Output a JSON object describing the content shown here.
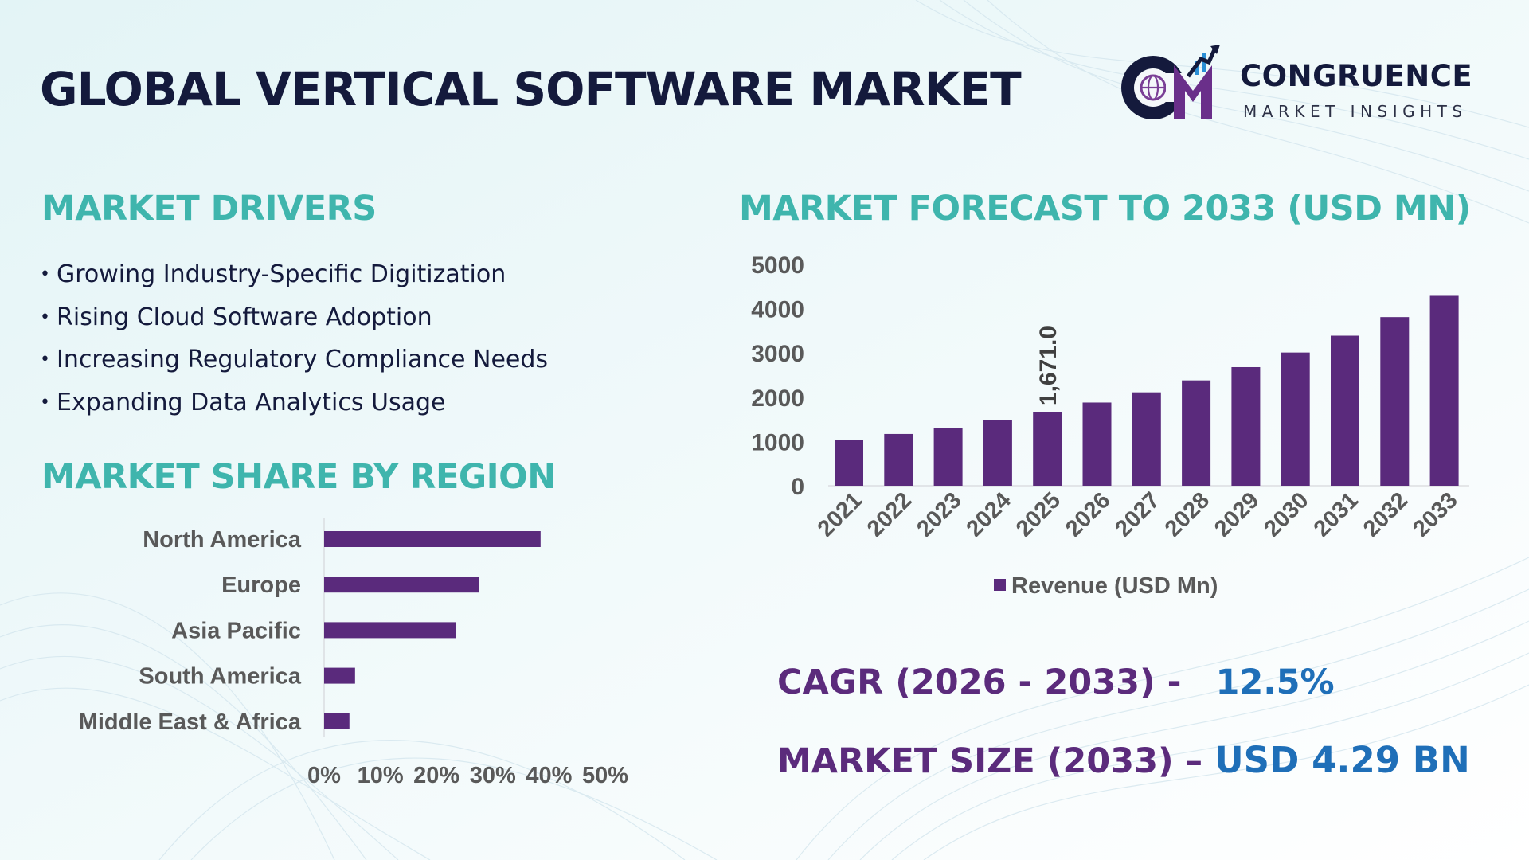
{
  "header": {
    "title": "GLOBAL VERTICAL SOFTWARE MARKET",
    "logo": {
      "mark": "CM",
      "name": "CONGRUENCE",
      "tagline": "MARKET INSIGHTS"
    }
  },
  "drivers": {
    "title": "MARKET DRIVERS",
    "items": [
      "Growing Industry-Specific Digitization",
      "Rising Cloud Software Adoption",
      "Increasing Regulatory Compliance Needs",
      "Expanding Data Analytics Usage"
    ]
  },
  "region_section": {
    "title": "MARKET SHARE BY REGION"
  },
  "forecast_section": {
    "title": "MARKET FORECAST TO 2033 (USD MN)"
  },
  "kpis": {
    "cagr_label": "CAGR (2026 - 2033) -",
    "cagr_value": "12.5%",
    "size_label": "MARKET SIZE (2033) –",
    "size_value": "USD 4.29 BN"
  },
  "colors": {
    "bar": "#5a2a7c",
    "accent": "#3fb5ad",
    "title": "#141a3c",
    "kpi_value": "#1f6fb8"
  },
  "chart_data": [
    {
      "type": "bar",
      "orientation": "horizontal",
      "categories": [
        "North America",
        "Europe",
        "Asia Pacific",
        "South America",
        "Middle East & Africa"
      ],
      "values": [
        38.5,
        27.5,
        23.5,
        5.5,
        4.5
      ],
      "xlim": [
        0,
        50
      ],
      "xticks": [
        "0%",
        "10%",
        "20%",
        "30%",
        "40%",
        "50%"
      ],
      "grid": false
    },
    {
      "type": "bar",
      "categories": [
        "2021",
        "2022",
        "2023",
        "2024",
        "2025",
        "2026",
        "2027",
        "2028",
        "2029",
        "2030",
        "2031",
        "2032",
        "2033"
      ],
      "series": [
        {
          "name": "Revenue (USD Mn)",
          "values": [
            1040,
            1170,
            1310,
            1480,
            1671,
            1880,
            2110,
            2380,
            2680,
            3010,
            3390,
            3810,
            4290
          ]
        }
      ],
      "data_labels": [
        {
          "index": 4,
          "text": "1,671.0"
        }
      ],
      "ylim": [
        0,
        5000
      ],
      "yticks": [
        "0",
        "1000",
        "2000",
        "3000",
        "4000",
        "5000"
      ],
      "legend": "bottom",
      "grid": false
    }
  ]
}
